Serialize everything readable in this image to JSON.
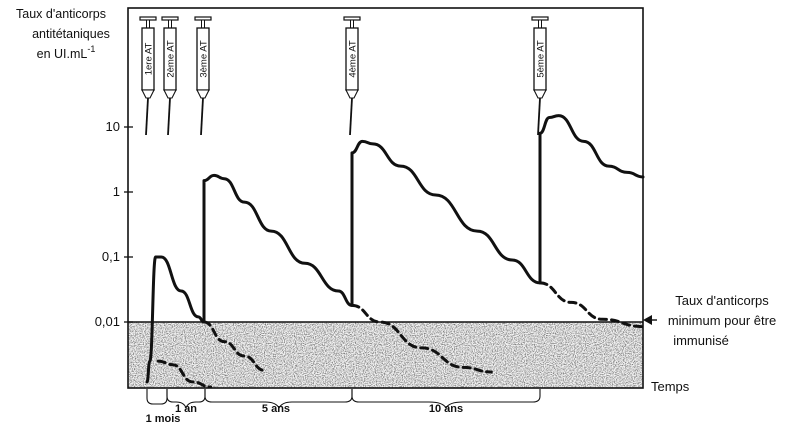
{
  "chart_data": {
    "type": "line",
    "y_scale": "log",
    "ylabel_lines": [
      "Taux d'anticorps",
      "antitétaniques",
      "en UI.mL"
    ],
    "ylabel_superscript": "-1",
    "xlabel": "Temps",
    "y_ticks": [
      {
        "value": 10,
        "label": "10"
      },
      {
        "value": 1,
        "label": "1"
      },
      {
        "value": 0.1,
        "label": "0,1"
      },
      {
        "value": 0.01,
        "label": "0,01"
      }
    ],
    "threshold": {
      "value": 0.01,
      "label_lines": [
        "Taux d'anticorps",
        "minimum pour être",
        "immunisé"
      ]
    },
    "injections": [
      {
        "label": "1ere AT",
        "x": 0
      },
      {
        "label": "2ème AT",
        "x": 1
      },
      {
        "label": "3ème AT",
        "x": 2
      },
      {
        "label": "4ème AT",
        "x": 3
      },
      {
        "label": "5ème AT",
        "x": 4
      }
    ],
    "intervals": [
      {
        "label": "1 mois"
      },
      {
        "label": "1 an"
      },
      {
        "label": "5 ans"
      },
      {
        "label": "10 ans"
      }
    ],
    "series": [
      {
        "style": "solid",
        "points": [
          [
            0,
            0.0012
          ],
          [
            0.05,
            0.0025
          ],
          [
            0.15,
            0.1
          ],
          [
            0.25,
            0.1
          ],
          [
            0.6,
            0.03
          ],
          [
            0.9,
            0.012
          ],
          [
            1.0,
            0.01
          ],
          [
            1.0,
            1.5
          ],
          [
            1.15,
            1.8
          ],
          [
            1.3,
            1.6
          ],
          [
            1.6,
            0.7
          ],
          [
            2.0,
            0.25
          ],
          [
            2.5,
            0.08
          ],
          [
            3.0,
            0.03
          ],
          [
            3.2,
            0.018
          ],
          [
            3.2,
            4.0
          ],
          [
            3.35,
            6.0
          ],
          [
            3.5,
            5.5
          ],
          [
            3.9,
            2.5
          ],
          [
            4.4,
            0.9
          ],
          [
            5.0,
            0.25
          ],
          [
            5.5,
            0.09
          ],
          [
            5.9,
            0.04
          ],
          [
            5.9,
            8.0
          ],
          [
            6.05,
            14.0
          ],
          [
            6.2,
            15.0
          ],
          [
            6.6,
            6.0
          ],
          [
            7.0,
            2.5
          ],
          [
            7.3,
            2.0
          ],
          [
            7.55,
            1.7
          ]
        ]
      },
      {
        "style": "dashed",
        "points": [
          [
            0.2,
            0.0025
          ],
          [
            0.45,
            0.0022
          ],
          [
            0.8,
            0.0012
          ],
          [
            1.1,
            0.001
          ]
        ]
      },
      {
        "style": "dashed",
        "points": [
          [
            1.0,
            0.01
          ],
          [
            1.3,
            0.005
          ],
          [
            1.6,
            0.003
          ],
          [
            1.9,
            0.0018
          ]
        ]
      },
      {
        "style": "dashed",
        "points": [
          [
            3.2,
            0.018
          ],
          [
            3.6,
            0.01
          ],
          [
            4.2,
            0.004
          ],
          [
            4.8,
            0.002
          ],
          [
            5.2,
            0.0017
          ]
        ]
      },
      {
        "style": "dashed",
        "points": [
          [
            5.9,
            0.04
          ],
          [
            6.4,
            0.02
          ],
          [
            6.9,
            0.011
          ],
          [
            7.55,
            0.0085
          ]
        ]
      }
    ]
  }
}
